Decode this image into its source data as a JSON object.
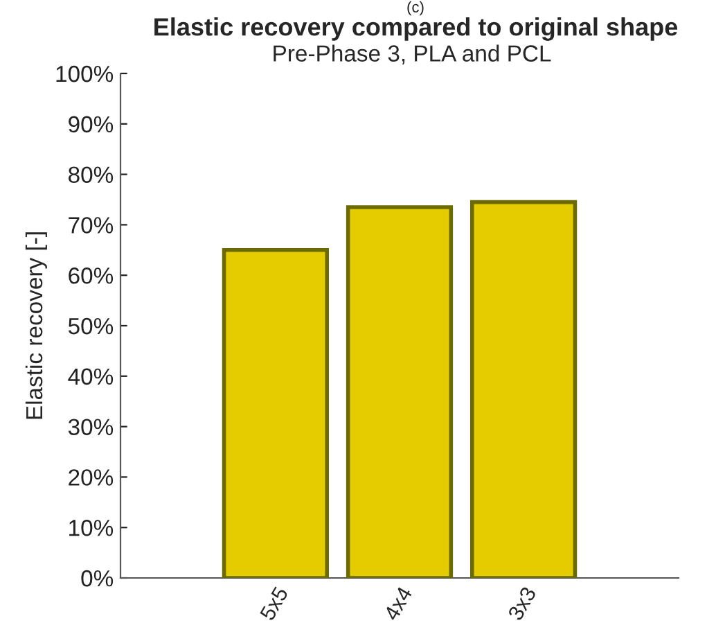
{
  "chart_data": {
    "type": "bar",
    "title": "Elastic recovery compared to original shape",
    "subtitle": "Pre-Phase 3, PLA and PCL",
    "ylabel": "Elastic recovery [-]",
    "annotations": [
      "(c)"
    ],
    "categories": [
      "5x5",
      "4x4",
      "3x3"
    ],
    "values": [
      0.65,
      0.735,
      0.745
    ],
    "color": "#e5cc00",
    "ylim": [
      0,
      1
    ],
    "yticks": [
      {
        "value": 0,
        "label": "0%"
      },
      {
        "value": 0.1,
        "label": "10%"
      },
      {
        "value": 0.2,
        "label": "20%"
      },
      {
        "value": 0.3,
        "label": "30%"
      },
      {
        "value": 0.4,
        "label": "40%"
      },
      {
        "value": 0.5,
        "label": "50%"
      },
      {
        "value": 0.6,
        "label": "60%"
      },
      {
        "value": 0.7,
        "label": "70%"
      },
      {
        "value": 0.8,
        "label": "80%"
      },
      {
        "value": 0.9,
        "label": "90%"
      },
      {
        "value": 1,
        "label": "100%"
      }
    ],
    "grid": false,
    "legend": false
  }
}
